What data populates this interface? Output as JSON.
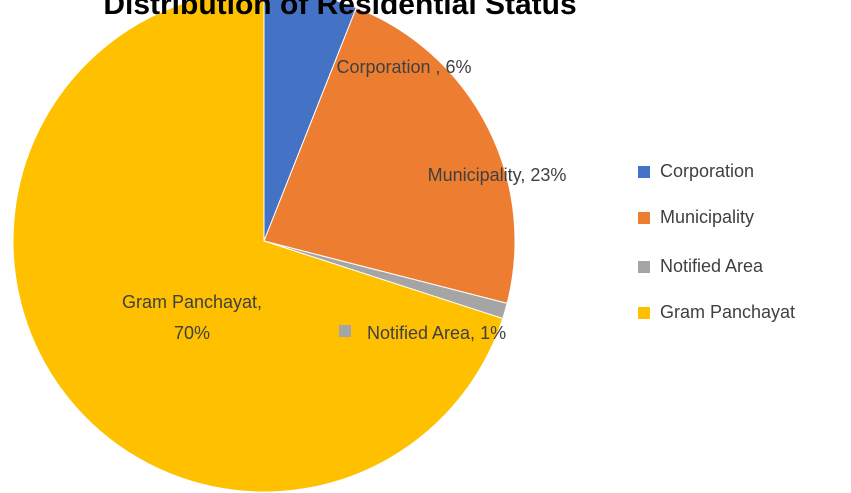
{
  "chart_data": {
    "type": "pie",
    "title": "Distribution of Residential Status",
    "categories": [
      "Corporation",
      "Municipality",
      "Notified Area",
      "Gram Panchayat"
    ],
    "values": [
      6,
      23,
      1,
      70
    ],
    "value_labels": [
      [
        "Corporation , 6%"
      ],
      [
        "Municipality, 23%"
      ],
      [
        "Notified Area, 1%"
      ],
      [
        "Gram Panchayat,",
        "70%"
      ]
    ],
    "colors": [
      "#4472c4",
      "#ed7d31",
      "#a5a5a5",
      "#ffc000"
    ],
    "legend": "right"
  }
}
